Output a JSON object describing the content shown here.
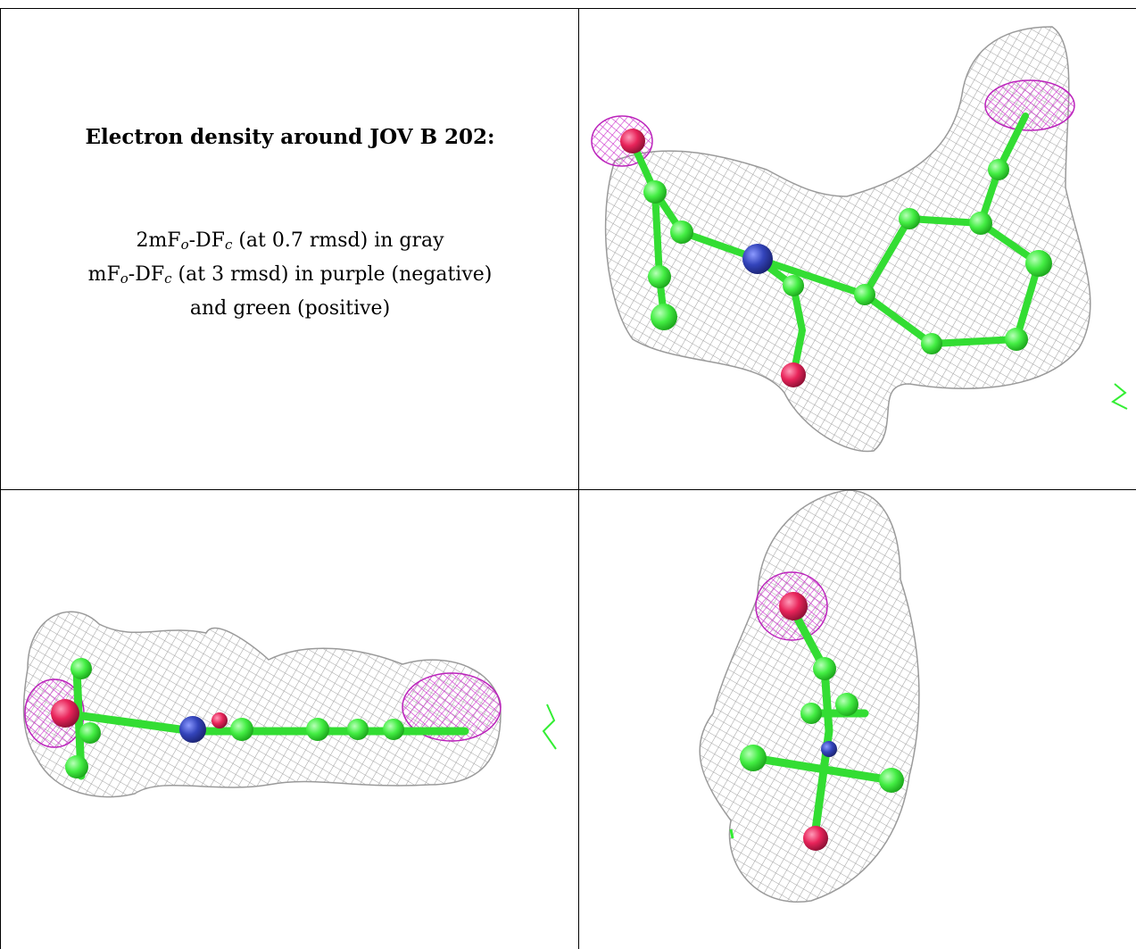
{
  "caption": {
    "heading": "Electron density around JOV B 202:",
    "legend": {
      "line1": {
        "pre": "2mF",
        "sub1": "o",
        "mid": "-DF",
        "sub2": "c",
        "post": " (at 0.7 rmsd) in gray"
      },
      "line2": {
        "pre": "mF",
        "sub1": "o",
        "mid": "-DF",
        "sub2": "c",
        "post": " (at 3 rmsd) in purple (negative)"
      },
      "line3": "and green (positive)"
    }
  },
  "colors": {
    "mesh_gray": "#a9a9a9",
    "mesh_negative": "#cc33cc",
    "mesh_positive": "#33ee33",
    "carbon": "#44ee44",
    "nitrogen": "#3344bb",
    "oxygen": "#e8245a"
  },
  "views": [
    "density-view-top",
    "density-view-side",
    "density-view-end"
  ]
}
